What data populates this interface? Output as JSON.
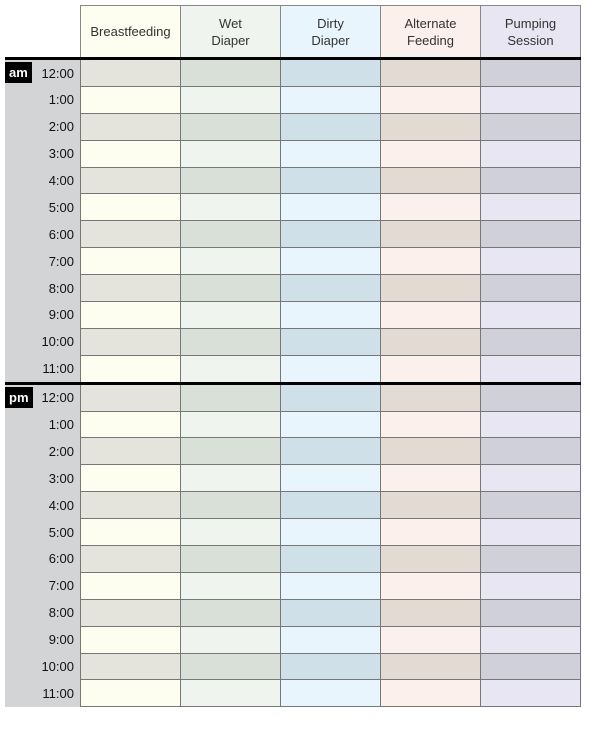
{
  "columns": [
    {
      "label1": "Breastfeeding",
      "label2": "",
      "light": "#fdfdf0",
      "dark": "#e4e4dc"
    },
    {
      "label1": "Wet",
      "label2": "Diaper",
      "light": "#eff5ee",
      "dark": "#d8e0d8"
    },
    {
      "label1": "Dirty",
      "label2": "Diaper",
      "light": "#e8f5fc",
      "dark": "#d0e0e8"
    },
    {
      "label1": "Alternate",
      "label2": "Feeding",
      "light": "#fcf0ec",
      "dark": "#e4dad4"
    },
    {
      "label1": "Pumping",
      "label2": "Session",
      "light": "#e8e6f2",
      "dark": "#d0d0da"
    }
  ],
  "periods": [
    {
      "label": "am",
      "times": [
        "12:00",
        "1:00",
        "2:00",
        "3:00",
        "4:00",
        "5:00",
        "6:00",
        "7:00",
        "8:00",
        "9:00",
        "10:00",
        "11:00"
      ]
    },
    {
      "label": "pm",
      "times": [
        "12:00",
        "1:00",
        "2:00",
        "3:00",
        "4:00",
        "5:00",
        "6:00",
        "7:00",
        "8:00",
        "9:00",
        "10:00",
        "11:00"
      ]
    }
  ]
}
